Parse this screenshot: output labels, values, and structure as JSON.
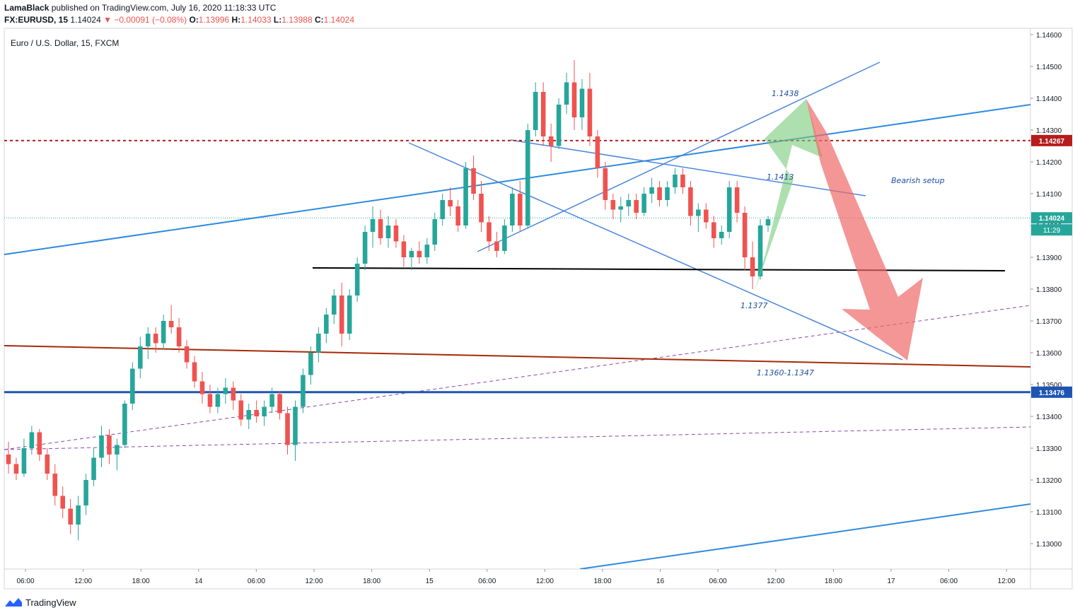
{
  "header": {
    "author": "LamaBlack",
    "published": "published on TradingView.com, July 16, 2020 11:18:33 UTC",
    "symbol_line": {
      "symbol": "FX:EURUSD, 15",
      "last": "1.14024",
      "change": "−0.00091 (−0.08%)",
      "open_label": "O:",
      "open": "1.13996",
      "high_label": "H:",
      "high": "1.14033",
      "low_label": "L:",
      "low": "1.13988",
      "close_label": "C:",
      "close": "1.14024"
    }
  },
  "chart_data": {
    "type": "candlestick",
    "title": "Euro / U.S. Dollar, 15, FXCM",
    "y_range": [
      1.1292,
      1.1462
    ],
    "y_ticks": [
      "1.14600",
      "1.14500",
      "1.14400",
      "1.14300",
      "1.14200",
      "1.14100",
      "1.14000",
      "1.13900",
      "1.13800",
      "1.13700",
      "1.13600",
      "1.13500",
      "1.13400",
      "1.13300",
      "1.13200",
      "1.13100",
      "1.13000"
    ],
    "x_ticks": [
      "06:00",
      "12:00",
      "18:00",
      "14",
      "06:00",
      "12:00",
      "18:00",
      "15",
      "06:00",
      "12:00",
      "18:00",
      "16",
      "06:00",
      "12:00",
      "18:00",
      "17",
      "06:00",
      "12:00"
    ],
    "price_levels": [
      {
        "value": 1.14267,
        "label": "1.14267",
        "color": "#b71c1c",
        "style": "dotted"
      },
      {
        "value": 1.13476,
        "label": "1.13476",
        "color": "#1e55b3",
        "style": "solid"
      },
      {
        "value": 1.14024,
        "label": "1.14024",
        "color": "#26a69a",
        "style": "dotted"
      }
    ],
    "countdown": "11:29",
    "horizontal_support": 1.1386,
    "annotations": [
      "1.1438",
      "1.1413",
      "1.1377",
      "1.1360-1.1347",
      "Bearish setup"
    ],
    "candles": [
      [
        1.1328,
        1.1332,
        1.1322,
        1.1325
      ],
      [
        1.1325,
        1.1327,
        1.132,
        1.1322
      ],
      [
        1.1322,
        1.1333,
        1.1321,
        1.133
      ],
      [
        1.133,
        1.1337,
        1.1328,
        1.1335
      ],
      [
        1.1335,
        1.1336,
        1.1326,
        1.1328
      ],
      [
        1.1328,
        1.133,
        1.132,
        1.1322
      ],
      [
        1.1322,
        1.1325,
        1.1312,
        1.1315
      ],
      [
        1.1315,
        1.1318,
        1.1308,
        1.1311
      ],
      [
        1.1311,
        1.1314,
        1.1303,
        1.1306
      ],
      [
        1.1306,
        1.1315,
        1.1301,
        1.1312
      ],
      [
        1.1312,
        1.1322,
        1.1309,
        1.132
      ],
      [
        1.132,
        1.133,
        1.1318,
        1.1327
      ],
      [
        1.1327,
        1.1337,
        1.1324,
        1.1334
      ],
      [
        1.1334,
        1.1336,
        1.1325,
        1.1328
      ],
      [
        1.1328,
        1.1333,
        1.1323,
        1.1331
      ],
      [
        1.1331,
        1.1345,
        1.133,
        1.1344
      ],
      [
        1.1344,
        1.1357,
        1.1342,
        1.1355
      ],
      [
        1.1355,
        1.1365,
        1.1352,
        1.1362
      ],
      [
        1.1362,
        1.1368,
        1.1358,
        1.1366
      ],
      [
        1.1366,
        1.1368,
        1.136,
        1.1363
      ],
      [
        1.1363,
        1.1372,
        1.1361,
        1.137
      ],
      [
        1.137,
        1.1375,
        1.1366,
        1.1368
      ],
      [
        1.1368,
        1.1371,
        1.136,
        1.1362
      ],
      [
        1.1362,
        1.1364,
        1.1355,
        1.1357
      ],
      [
        1.1357,
        1.1359,
        1.1349,
        1.1351
      ],
      [
        1.1351,
        1.1354,
        1.1344,
        1.1347
      ],
      [
        1.1347,
        1.135,
        1.1341,
        1.1343
      ],
      [
        1.1343,
        1.1349,
        1.1341,
        1.1347
      ],
      [
        1.1347,
        1.1352,
        1.1344,
        1.1349
      ],
      [
        1.1349,
        1.1351,
        1.1342,
        1.1345
      ],
      [
        1.1345,
        1.1347,
        1.1337,
        1.1339
      ],
      [
        1.1339,
        1.1344,
        1.1336,
        1.1342
      ],
      [
        1.1342,
        1.1345,
        1.1338,
        1.134
      ],
      [
        1.134,
        1.1345,
        1.1337,
        1.1343
      ],
      [
        1.1343,
        1.1349,
        1.1341,
        1.1347
      ],
      [
        1.1347,
        1.1348,
        1.1339,
        1.1341
      ],
      [
        1.1341,
        1.1343,
        1.1328,
        1.1331
      ],
      [
        1.1331,
        1.1345,
        1.1326,
        1.1343
      ],
      [
        1.1343,
        1.1355,
        1.1341,
        1.1353
      ],
      [
        1.1353,
        1.1362,
        1.135,
        1.136
      ],
      [
        1.136,
        1.1368,
        1.1357,
        1.1366
      ],
      [
        1.1366,
        1.1374,
        1.1363,
        1.1372
      ],
      [
        1.1372,
        1.138,
        1.1369,
        1.1378
      ],
      [
        1.1378,
        1.1382,
        1.1362,
        1.1366
      ],
      [
        1.1366,
        1.138,
        1.1364,
        1.1378
      ],
      [
        1.1378,
        1.139,
        1.1376,
        1.1388
      ],
      [
        1.1388,
        1.14,
        1.1386,
        1.1398
      ],
      [
        1.1398,
        1.1406,
        1.1393,
        1.1402
      ],
      [
        1.1402,
        1.1405,
        1.1394,
        1.1396
      ],
      [
        1.1396,
        1.1403,
        1.1393,
        1.14
      ],
      [
        1.14,
        1.1402,
        1.1393,
        1.1395
      ],
      [
        1.1395,
        1.1397,
        1.1387,
        1.139
      ],
      [
        1.139,
        1.1393,
        1.1386,
        1.1392
      ],
      [
        1.1392,
        1.1395,
        1.1388,
        1.139
      ],
      [
        1.139,
        1.1396,
        1.1388,
        1.1394
      ],
      [
        1.1394,
        1.1404,
        1.1392,
        1.1402
      ],
      [
        1.1402,
        1.141,
        1.14,
        1.1408
      ],
      [
        1.1408,
        1.1412,
        1.1403,
        1.1406
      ],
      [
        1.1406,
        1.1408,
        1.1398,
        1.14
      ],
      [
        1.14,
        1.142,
        1.1399,
        1.1418
      ],
      [
        1.1418,
        1.1422,
        1.1408,
        1.141
      ],
      [
        1.141,
        1.1414,
        1.1398,
        1.1401
      ],
      [
        1.1401,
        1.1403,
        1.1392,
        1.1395
      ],
      [
        1.1395,
        1.1398,
        1.139,
        1.1392
      ],
      [
        1.1392,
        1.1402,
        1.1391,
        1.14
      ],
      [
        1.14,
        1.1412,
        1.1398,
        1.141
      ],
      [
        1.141,
        1.1414,
        1.1398,
        1.14
      ],
      [
        1.14,
        1.1432,
        1.1399,
        1.143
      ],
      [
        1.143,
        1.1445,
        1.1428,
        1.1442
      ],
      [
        1.1442,
        1.1445,
        1.1425,
        1.1428
      ],
      [
        1.1428,
        1.1432,
        1.142,
        1.1425
      ],
      [
        1.1425,
        1.144,
        1.1424,
        1.1438
      ],
      [
        1.1438,
        1.1448,
        1.1435,
        1.1445
      ],
      [
        1.1445,
        1.1452,
        1.143,
        1.1434
      ],
      [
        1.1434,
        1.1446,
        1.143,
        1.1443
      ],
      [
        1.1443,
        1.1448,
        1.1425,
        1.1428
      ],
      [
        1.1428,
        1.143,
        1.1415,
        1.1418
      ],
      [
        1.1418,
        1.142,
        1.1405,
        1.1408
      ],
      [
        1.1408,
        1.141,
        1.1402,
        1.1405
      ],
      [
        1.1405,
        1.1409,
        1.1401,
        1.1406
      ],
      [
        1.1406,
        1.141,
        1.1403,
        1.1408
      ],
      [
        1.1408,
        1.141,
        1.1402,
        1.1404
      ],
      [
        1.1404,
        1.1412,
        1.1403,
        1.141
      ],
      [
        1.141,
        1.1415,
        1.1407,
        1.1412
      ],
      [
        1.1412,
        1.1414,
        1.1406,
        1.1408
      ],
      [
        1.1408,
        1.1414,
        1.1406,
        1.1412
      ],
      [
        1.1412,
        1.1418,
        1.141,
        1.1416
      ],
      [
        1.1416,
        1.1418,
        1.141,
        1.1412
      ],
      [
        1.1412,
        1.1414,
        1.14,
        1.1403
      ],
      [
        1.1403,
        1.1407,
        1.1398,
        1.1405
      ],
      [
        1.1405,
        1.1407,
        1.1399,
        1.1401
      ],
      [
        1.1401,
        1.1403,
        1.1393,
        1.1396
      ],
      [
        1.1396,
        1.14,
        1.1394,
        1.1398
      ],
      [
        1.1398,
        1.1414,
        1.1396,
        1.1412
      ],
      [
        1.1412,
        1.1414,
        1.1401,
        1.1404
      ],
      [
        1.1404,
        1.1406,
        1.1386,
        1.139
      ],
      [
        1.139,
        1.1395,
        1.138,
        1.1384
      ],
      [
        1.1384,
        1.1402,
        1.1383,
        1.14
      ],
      [
        1.14,
        1.1403,
        1.1398,
        1.1402
      ]
    ]
  },
  "footer": {
    "brand": "TradingView"
  }
}
